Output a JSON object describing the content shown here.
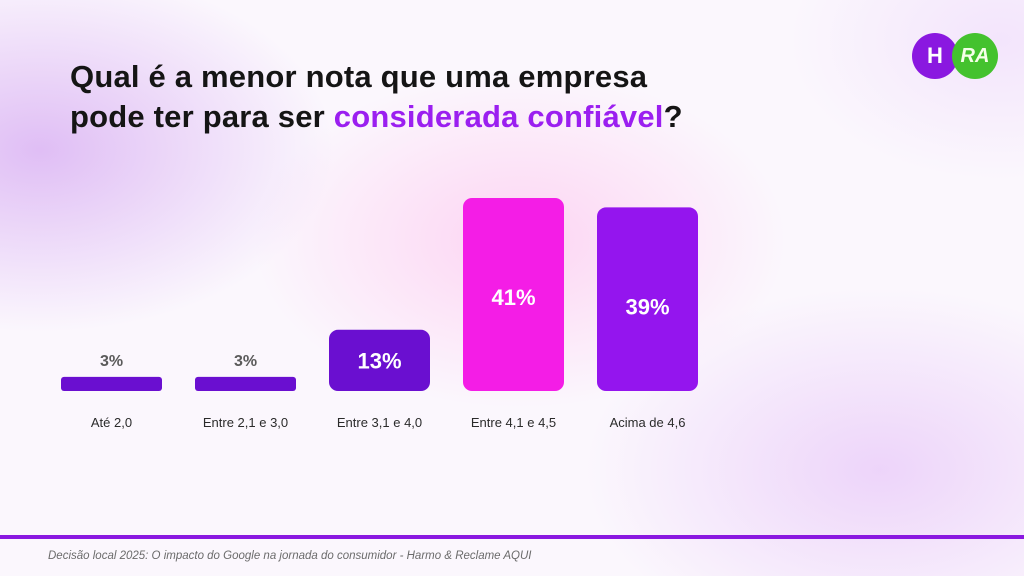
{
  "title": {
    "line1": "Qual é a menor nota que uma empresa",
    "line2_prefix": "pode ter para ser ",
    "line2_highlight": "considerada confiável",
    "line2_suffix": "?"
  },
  "logos": {
    "harmo": "H",
    "reclame_aqui": "RA"
  },
  "colors": {
    "accent": "#9b1ff0",
    "dark_purple": "#6a0fd0",
    "magenta": "#f41de6",
    "violet": "#9415ee",
    "footer_line": "#8a18e0"
  },
  "chart_data": {
    "type": "bar",
    "categories": [
      "Até 2,0",
      "Entre 2,1 e 3,0",
      "Entre 3,1 e 4,0",
      "Entre 4,1 e 4,5",
      "Acima de 4,6"
    ],
    "values": [
      3,
      3,
      13,
      41,
      39
    ],
    "value_labels": [
      "3%",
      "3%",
      "13%",
      "41%",
      "39%"
    ],
    "bar_colors": [
      "#6a0fd0",
      "#6a0fd0",
      "#6a0fd0",
      "#f41de6",
      "#9415ee"
    ],
    "ylim": [
      0,
      41
    ],
    "grid": false,
    "legend": "none"
  },
  "footer": {
    "text": "Decisão local 2025: O impacto do Google na jornada do consumidor - Harmo & Reclame AQUI"
  }
}
